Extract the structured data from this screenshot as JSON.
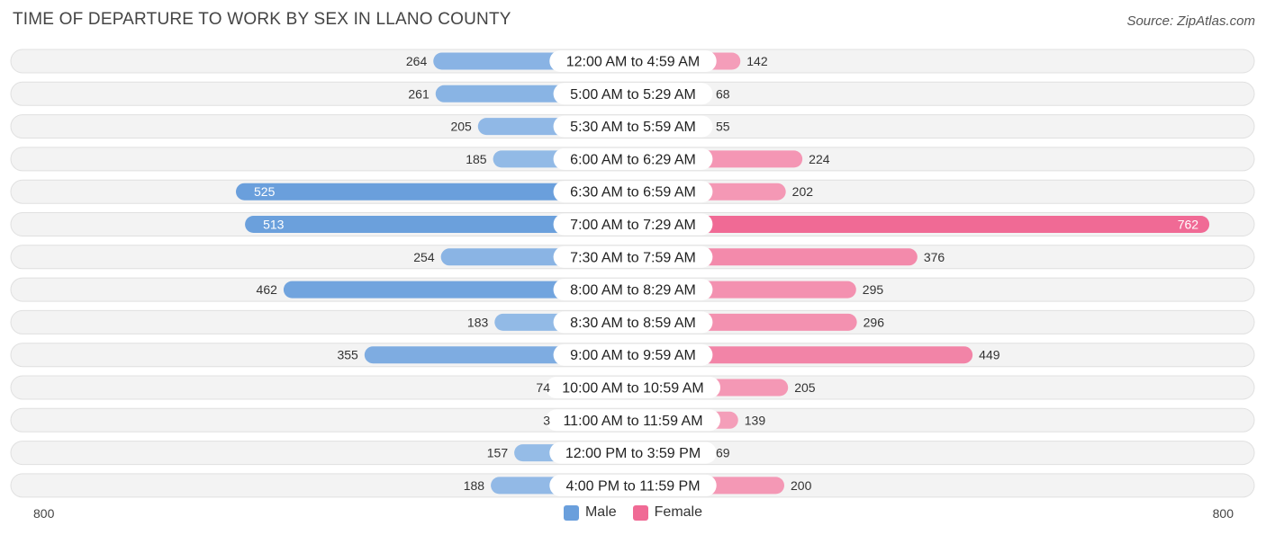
{
  "title": "TIME OF DEPARTURE TO WORK BY SEX IN LLANO COUNTY",
  "source": "Source: ZipAtlas.com",
  "colors": {
    "male": "#6a9fdc",
    "male_light": "#a8c8ec",
    "female": "#f06a95",
    "female_light": "#f5a9c1"
  },
  "legend": {
    "male": "Male",
    "female": "Female"
  },
  "axis": {
    "left": "800",
    "right": "800"
  },
  "chart_data": {
    "type": "bar",
    "orientation": "horizontal-diverging",
    "categories": [
      "12:00 AM to 4:59 AM",
      "5:00 AM to 5:29 AM",
      "5:30 AM to 5:59 AM",
      "6:00 AM to 6:29 AM",
      "6:30 AM to 6:59 AM",
      "7:00 AM to 7:29 AM",
      "7:30 AM to 7:59 AM",
      "8:00 AM to 8:29 AM",
      "8:30 AM to 8:59 AM",
      "9:00 AM to 9:59 AM",
      "10:00 AM to 10:59 AM",
      "11:00 AM to 11:59 AM",
      "12:00 PM to 3:59 PM",
      "4:00 PM to 11:59 PM"
    ],
    "series": [
      {
        "name": "Male",
        "values": [
          264,
          261,
          205,
          185,
          525,
          513,
          254,
          462,
          183,
          355,
          74,
          3,
          157,
          188
        ]
      },
      {
        "name": "Female",
        "values": [
          142,
          68,
          55,
          224,
          202,
          762,
          376,
          295,
          296,
          449,
          205,
          139,
          69,
          200
        ]
      }
    ],
    "xlim": [
      -800,
      800
    ],
    "legend_position": "bottom-center",
    "grid": false
  }
}
